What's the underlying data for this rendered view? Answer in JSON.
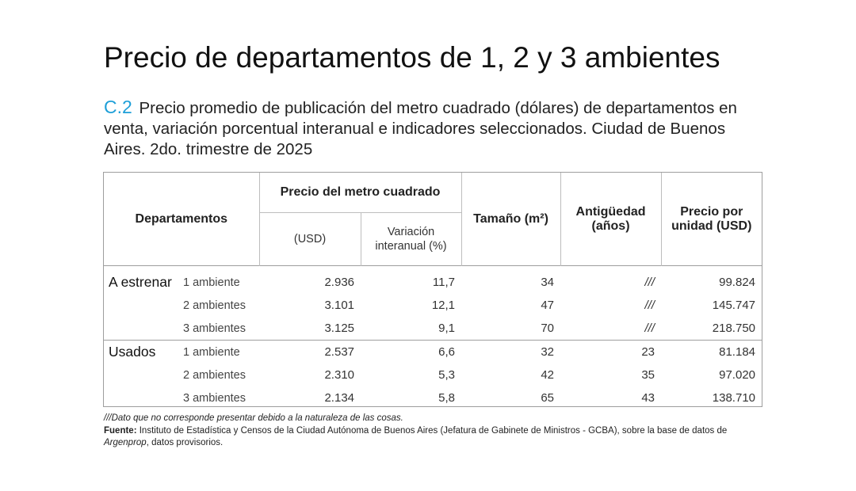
{
  "title": "Precio de departamentos de 1, 2 y 3 ambientes",
  "subtitle": {
    "code": "C.2",
    "text": "Precio promedio de publicación del metro cuadrado (dólares) de departamentos en venta, variación porcentual interanual e indicadores seleccionados. Ciudad de Buenos Aires. 2do. trimestre de 2025"
  },
  "table": {
    "headers": {
      "departamentos": "Departamentos",
      "precio_m2": "Precio del metro cuadrado",
      "usd": "(USD)",
      "variacion": "Variación interanual (%)",
      "tamano": "Tamaño (m²)",
      "antiguedad": "Antigüedad (años)",
      "precio_unidad": "Precio por unidad (USD)"
    },
    "groups": [
      {
        "label": "A estrenar",
        "rows": [
          {
            "ambientes": "1 ambiente",
            "usd": "2.936",
            "variacion": "11,7",
            "tamano": "34",
            "antiguedad": "///",
            "precio_unidad": "99.824"
          },
          {
            "ambientes": "2 ambientes",
            "usd": "3.101",
            "variacion": "12,1",
            "tamano": "47",
            "antiguedad": "///",
            "precio_unidad": "145.747"
          },
          {
            "ambientes": "3 ambientes",
            "usd": "3.125",
            "variacion": "9,1",
            "tamano": "70",
            "antiguedad": "///",
            "precio_unidad": "218.750"
          }
        ]
      },
      {
        "label": "Usados",
        "rows": [
          {
            "ambientes": "1 ambiente",
            "usd": "2.537",
            "variacion": "6,6",
            "tamano": "32",
            "antiguedad": "23",
            "precio_unidad": "81.184"
          },
          {
            "ambientes": "2 ambientes",
            "usd": "2.310",
            "variacion": "5,3",
            "tamano": "42",
            "antiguedad": "35",
            "precio_unidad": "97.020"
          },
          {
            "ambientes": "3 ambientes",
            "usd": "2.134",
            "variacion": "5,8",
            "tamano": "65",
            "antiguedad": "43",
            "precio_unidad": "138.710"
          }
        ]
      }
    ]
  },
  "footnote": {
    "note": "///Dato que no corresponde presentar debido a la naturaleza de las cosas.",
    "source_label": "Fuente:",
    "source_text_1": "Instituto de Estadística y Censos de la Ciudad Autónoma de Buenos Aires (Jefatura de Gabinete de Ministros - GCBA), sobre la base de datos de",
    "source_italic": "Argenprop",
    "source_text_2": ", datos provisorios."
  },
  "colors": {
    "accent": "#1e9fd8",
    "border": "#9e9e9e",
    "text": "#1a1a1a"
  }
}
